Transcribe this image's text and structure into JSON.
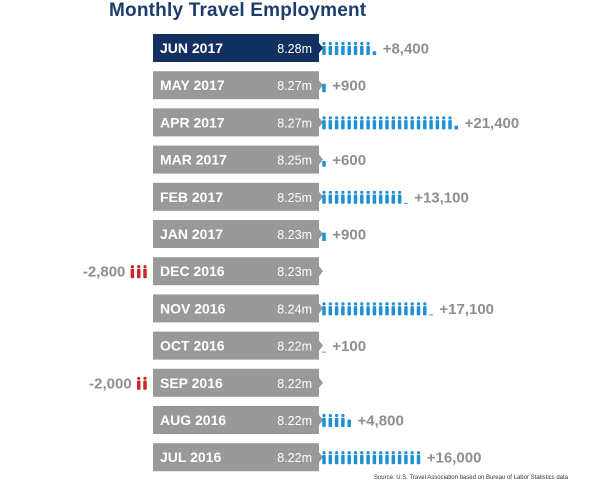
{
  "chart_data": {
    "type": "bar",
    "title": "Monthly Travel Employment",
    "categories": [
      "JUN 2017",
      "MAY 2017",
      "APR 2017",
      "MAR 2017",
      "FEB 2017",
      "JAN 2017",
      "DEC 2016",
      "NOV 2016",
      "OCT 2016",
      "SEP 2016",
      "AUG 2016",
      "JUL 2016"
    ],
    "employment_labels": [
      "8.28m",
      "8.27m",
      "8.27m",
      "8.25m",
      "8.25m",
      "8.23m",
      "8.23m",
      "8.24m",
      "8.22m",
      "8.22m",
      "8.22m",
      "8.22m"
    ],
    "values": [
      8400,
      900,
      21400,
      600,
      13100,
      900,
      -2800,
      17100,
      100,
      -2000,
      4800,
      16000
    ],
    "change_labels": [
      "+8,400",
      "+900",
      "+21,400",
      "+600",
      "+13,100",
      "+900",
      "-2,800",
      "+17,100",
      "+100",
      "-2,000",
      "+4,800",
      "+16,000"
    ],
    "highlight_index": 0,
    "icon_unit": 1000,
    "colors": {
      "highlight": "#12305f",
      "bar": "#999999",
      "bar_text": "#ffffff",
      "positive_icon": "#1f8fd6",
      "negative_icon": "#c8252c",
      "change_text": "#8f8f8f",
      "title": "#1c3d6e"
    }
  },
  "source": "Source: U.S. Travel Association based on Bureau of Labor Statistics data"
}
